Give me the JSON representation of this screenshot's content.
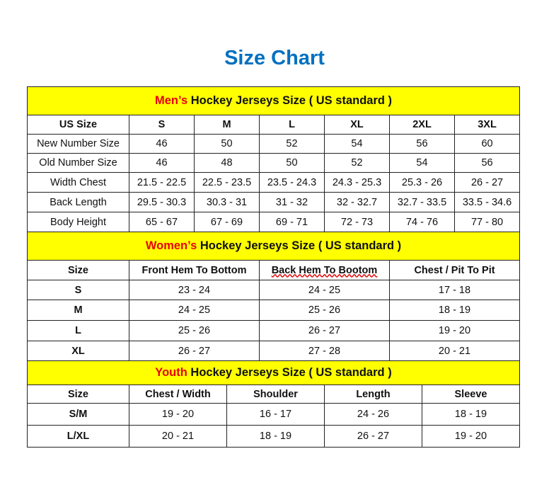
{
  "title": "Size Chart",
  "men": {
    "band_red": "Men’s",
    "band_rest": " Hockey Jerseys Size ( US standard )",
    "headers": [
      "US Size",
      "S",
      "M",
      "L",
      "XL",
      "2XL",
      "3XL"
    ],
    "rows": [
      [
        "New Number Size",
        "46",
        "50",
        "52",
        "54",
        "56",
        "60"
      ],
      [
        "Old Number Size",
        "46",
        "48",
        "50",
        "52",
        "54",
        "56"
      ],
      [
        "Width Chest",
        "21.5 - 22.5",
        "22.5 - 23.5",
        "23.5 - 24.3",
        "24.3 - 25.3",
        "25.3 - 26",
        "26 - 27"
      ],
      [
        "Back Length",
        "29.5 - 30.3",
        "30.3 - 31",
        "31 - 32",
        "32 - 32.7",
        "32.7 - 33.5",
        "33.5 - 34.6"
      ],
      [
        "Body Height",
        "65 - 67",
        "67 - 69",
        "69 - 71",
        "72 - 73",
        "74 - 76",
        "77 - 80"
      ]
    ]
  },
  "women": {
    "band_red": "Women’s",
    "band_rest": " Hockey Jerseys Size ( US standard )",
    "headers": [
      "Size",
      "Front Hem To Bottom",
      "Back Hem To Bootom",
      "Chest / Pit To Pit"
    ],
    "rows": [
      [
        "S",
        "23 - 24",
        "24 - 25",
        "17 - 18"
      ],
      [
        "M",
        "24 - 25",
        "25 - 26",
        "18 - 19"
      ],
      [
        "L",
        "25 - 26",
        "26 - 27",
        "19 - 20"
      ],
      [
        "XL",
        "26 - 27",
        "27 - 28",
        "20 - 21"
      ]
    ]
  },
  "youth": {
    "band_red": "Youth",
    "band_rest": " Hockey Jerseys Size ( US standard )",
    "headers": [
      "Size",
      "Chest / Width",
      "Shoulder",
      "Length",
      "Sleeve"
    ],
    "rows": [
      [
        "S/M",
        "19 - 20",
        "16 - 17",
        "24 - 26",
        "18 - 19"
      ],
      [
        "L/XL",
        "20 - 21",
        "18 - 19",
        "26 - 27",
        "19 - 20"
      ]
    ]
  },
  "colors": {
    "title": "#0070c0",
    "band": "#ffff00",
    "accent_red": "#e8000b"
  }
}
